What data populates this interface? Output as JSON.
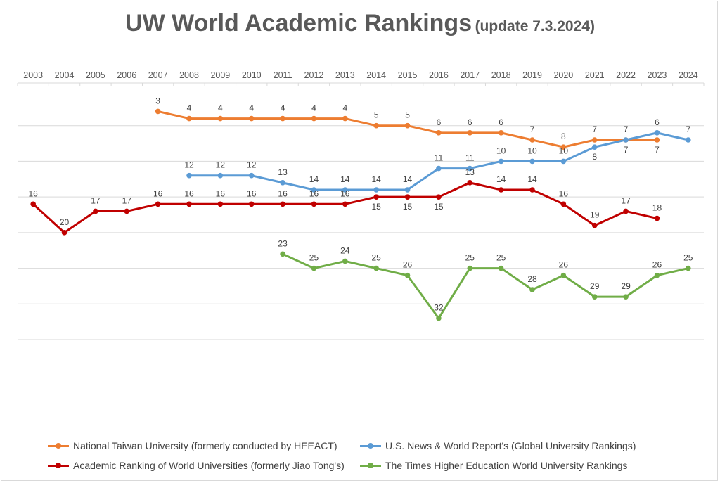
{
  "chart_data": {
    "type": "line",
    "title": "UW World Academic Rankings",
    "subtitle": "(update 7.3.2024)",
    "categories": [
      "2003",
      "2004",
      "2005",
      "2006",
      "2007",
      "2008",
      "2009",
      "2010",
      "2011",
      "2012",
      "2013",
      "2014",
      "2015",
      "2016",
      "2017",
      "2018",
      "2019",
      "2020",
      "2021",
      "2022",
      "2023",
      "2024"
    ],
    "y_axis": {
      "reversed": true,
      "ylim": [
        0,
        35
      ],
      "tick_labels_visible": false,
      "gridlines": true
    },
    "legend_position": "bottom",
    "series": [
      {
        "name": "National Taiwan University (formerly conducted by HEEACT)",
        "color": "#ed7d31",
        "values": [
          null,
          null,
          null,
          null,
          3,
          4,
          4,
          4,
          4,
          4,
          4,
          5,
          5,
          6,
          6,
          6,
          7,
          8,
          7,
          7,
          7,
          null
        ]
      },
      {
        "name": "U.S. News & World Report's (Global University Rankings)",
        "color": "#5b9bd5",
        "values": [
          null,
          null,
          null,
          null,
          null,
          12,
          12,
          12,
          13,
          14,
          14,
          14,
          14,
          11,
          11,
          10,
          10,
          10,
          8,
          7,
          6,
          7
        ]
      },
      {
        "name": "Academic Ranking of World Universities (formerly Jiao Tong's)",
        "color": "#c00000",
        "values": [
          16,
          20,
          17,
          17,
          16,
          16,
          16,
          16,
          16,
          16,
          16,
          15,
          15,
          15,
          13,
          14,
          14,
          16,
          19,
          17,
          18,
          null
        ]
      },
      {
        "name": "The Times Higher Education World University Rankings",
        "color": "#70ad47",
        "values": [
          null,
          null,
          null,
          null,
          null,
          null,
          null,
          null,
          23,
          25,
          24,
          25,
          26,
          32,
          25,
          25,
          28,
          26,
          29,
          29,
          26,
          25
        ]
      }
    ]
  }
}
